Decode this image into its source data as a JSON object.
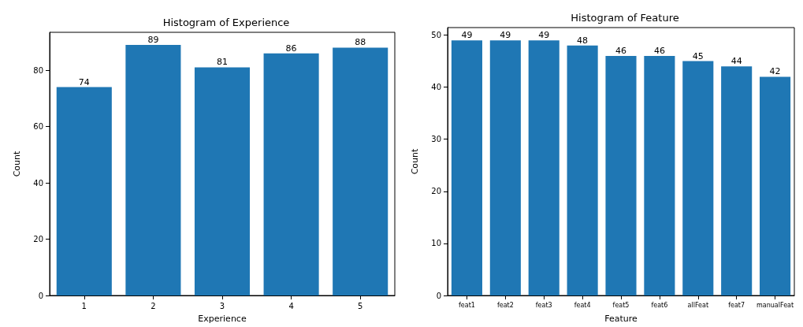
{
  "chart_data": [
    {
      "type": "bar",
      "title": "Histogram of Experience",
      "xlabel": "Experience",
      "ylabel": "Count",
      "categories": [
        "1",
        "2",
        "3",
        "4",
        "5"
      ],
      "values": [
        74,
        89,
        81,
        86,
        88
      ],
      "color": "#1f77b4",
      "ylim": [
        0,
        93.45
      ],
      "yticks": [
        0,
        20,
        40,
        60,
        80
      ],
      "grid": false,
      "data_labels": true
    },
    {
      "type": "bar",
      "title": "Histogram of Feature",
      "xlabel": "Feature",
      "ylabel": "Count",
      "categories": [
        "feat1",
        "feat2",
        "feat3",
        "feat4",
        "feat5",
        "feat6",
        "allFeat",
        "feat7",
        "manualFeat"
      ],
      "values": [
        49,
        49,
        49,
        48,
        46,
        46,
        45,
        44,
        42
      ],
      "color": "#1f77b4",
      "ylim": [
        0,
        51.45
      ],
      "yticks": [
        0,
        10,
        20,
        30,
        40,
        50
      ],
      "grid": false,
      "data_labels": true
    }
  ]
}
